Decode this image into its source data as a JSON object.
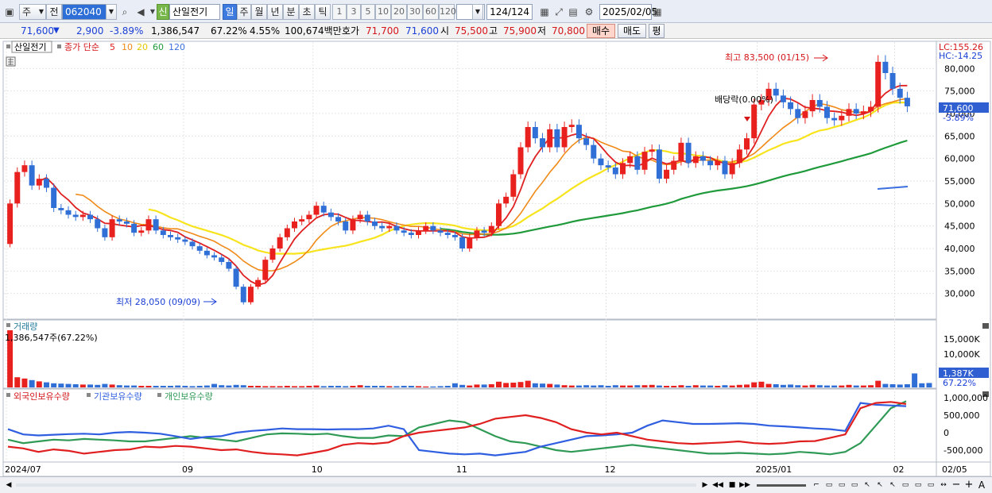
{
  "toolbar": {
    "type_label": "주",
    "prev_label": "전",
    "code": "062040",
    "badge": "신",
    "name": "산일전기",
    "period_tabs": [
      "일",
      "주",
      "월",
      "년",
      "분",
      "초",
      "틱"
    ],
    "active_tab": "일",
    "intervals": [
      "1",
      "3",
      "5",
      "10",
      "20",
      "30",
      "60",
      "120"
    ],
    "count": "124",
    "count_total": "/124",
    "date": "2025/02/05"
  },
  "quote": {
    "price": "71,600",
    "down_arrow": "▼",
    "change": "2,900",
    "change_pct": "-3.89%",
    "volume": "1,386,547",
    "volume_ratio": "67.22%",
    "turnover": "4.55%",
    "amount": "100,674백만",
    "bid_label": "호가",
    "ask": "71,700",
    "bid": "71,600",
    "open_label": "시",
    "open": "75,500",
    "high_label": "고",
    "high": "75,900",
    "low_label": "저",
    "low": "70,800",
    "buy_label": "매수",
    "sell_label": "매도",
    "eval_label": "평"
  },
  "chart": {
    "ticker_label": "산일전기",
    "ma_label": "종가 단순",
    "ma_periods": [
      "5",
      "10",
      "20",
      "60",
      "120"
    ],
    "lc": "LC:155.26",
    "hc": "HC:-14.25",
    "high_note": "최고 83,500 (01/15)",
    "low_note": "최저 28,050 (09/09)",
    "dividend_note": "배당락(0.00%)",
    "price_ticks": [
      "80,000",
      "75,000",
      "70,000",
      "65,000",
      "60,000",
      "55,000",
      "50,000",
      "45,000",
      "40,000",
      "35,000",
      "30,000"
    ],
    "price_tag": "71,600",
    "pct_tag": "-3.89%",
    "volume_title": "거래량",
    "volume_note": "1,386,547주(67.22%)",
    "volume_ticks": [
      "15,000K",
      "10,000K"
    ],
    "volume_tag": "1,387K",
    "volume_pct": "67.22%",
    "holdings_legend": [
      "외국인보유수량",
      "기관보유수량",
      "개인보유수량"
    ],
    "holdings_ticks": [
      "1,000,000",
      "500,000",
      "0",
      "-500,000"
    ],
    "x_labels": [
      "2024/07",
      "09",
      "10",
      "11",
      "12",
      "2025/01",
      "02",
      "02/05"
    ]
  },
  "colors": {
    "up": "#e8201e",
    "down": "#2f6fd6",
    "ma5": "#e02020",
    "ma10": "#f08a18",
    "ma20": "#f7e41c",
    "ma60": "#1f9a3a",
    "ma120": "#3b6fe0",
    "foreign": "#e02020",
    "institution": "#2f5fe0",
    "individual": "#2f9a55"
  },
  "chart_data": {
    "type": "candlestick",
    "x_range": [
      "2024/07",
      "2025/02/05"
    ],
    "ylim": [
      25000,
      85000
    ],
    "closes": [
      50000,
      57000,
      58500,
      54000,
      55500,
      53500,
      49000,
      48500,
      47500,
      47000,
      47500,
      46500,
      44500,
      42500,
      46500,
      46000,
      45500,
      43500,
      44000,
      46500,
      44000,
      43000,
      42500,
      42000,
      41500,
      40500,
      39500,
      38500,
      38000,
      37000,
      35500,
      31500,
      28050,
      31500,
      33000,
      37500,
      40000,
      42500,
      44500,
      46000,
      46500,
      47500,
      49500,
      48000,
      47000,
      46000,
      44000,
      46500,
      47500,
      46000,
      45000,
      44500,
      45000,
      44000,
      43500,
      43000,
      44000,
      45000,
      44000,
      43500,
      43000,
      42500,
      40000,
      42500,
      44000,
      43500,
      45000,
      50000,
      51500,
      56500,
      62500,
      67000,
      64500,
      62500,
      66500,
      62500,
      67000,
      67500,
      64500,
      63000,
      60000,
      58500,
      58000,
      56500,
      59000,
      60500,
      57500,
      61500,
      62000,
      55500,
      57500,
      59500,
      63500,
      59000,
      60500,
      59500,
      58500,
      59500,
      56500,
      59000,
      62000,
      64500,
      72000,
      73000,
      75500,
      74000,
      72500,
      71000,
      69000,
      70500,
      73000,
      71500,
      69000,
      68500,
      69500,
      71000,
      70000,
      70500,
      71500,
      81500,
      79000,
      75500,
      73500,
      71600
    ],
    "highs_lows": {
      "high": 83500,
      "high_date": "01/15",
      "low": 28050,
      "low_date": "09/09"
    },
    "volume": [
      18000,
      3200,
      2800,
      2300,
      1900,
      1600,
      1300,
      1200,
      1100,
      1000,
      900,
      900,
      800,
      1100,
      900,
      700,
      600,
      600,
      500,
      500,
      500,
      500,
      500,
      600,
      500,
      400,
      500,
      600,
      1100,
      700,
      600,
      800,
      700,
      500,
      500,
      400,
      400,
      400,
      500,
      400,
      400,
      500,
      600,
      400,
      500,
      500,
      400,
      500,
      700,
      500,
      500,
      500,
      400,
      400,
      500,
      500,
      400,
      300,
      300,
      400,
      500,
      1300,
      800,
      600,
      900,
      900,
      1000,
      1800,
      1400,
      1500,
      1700,
      2100,
      1300,
      1200,
      1100,
      900,
      700,
      600,
      600,
      700,
      600,
      700,
      500,
      700,
      600,
      600,
      700,
      700,
      800,
      600,
      500,
      500,
      700,
      500,
      700,
      600,
      600,
      500,
      700,
      600,
      800,
      900,
      1600,
      1800,
      1100,
      1000,
      800,
      900,
      700,
      600,
      800,
      700,
      600,
      600,
      600,
      800,
      600,
      600,
      700,
      2100,
      1100,
      1000,
      900,
      1000,
      4400,
      1300,
      1387
    ],
    "holdings": {
      "foreign": [
        -400000,
        -450000,
        -550000,
        -480000,
        -520000,
        -600000,
        -550000,
        -500000,
        -480000,
        -400000,
        -420000,
        -380000,
        -400000,
        -450000,
        -500000,
        -480000,
        -550000,
        -600000,
        -620000,
        -650000,
        -580000,
        -500000,
        -350000,
        -300000,
        -320000,
        -280000,
        -100000,
        0,
        50000,
        100000,
        150000,
        250000,
        400000,
        450000,
        500000,
        420000,
        300000,
        100000,
        0,
        -50000,
        0,
        -100000,
        -200000,
        -250000,
        -300000,
        -320000,
        -300000,
        -280000,
        -250000,
        -300000,
        -320000,
        -300000,
        -250000,
        -240000,
        -150000,
        -50000,
        700000,
        850000,
        880000,
        820000
      ],
      "institution": [
        100000,
        -50000,
        -80000,
        -60000,
        -40000,
        -30000,
        -50000,
        0,
        20000,
        0,
        -30000,
        -100000,
        -180000,
        -120000,
        -100000,
        0,
        50000,
        80000,
        120000,
        100000,
        100000,
        90000,
        100000,
        100000,
        120000,
        200000,
        100000,
        -500000,
        -550000,
        -600000,
        -620000,
        -600000,
        -650000,
        -600000,
        -550000,
        -400000,
        -300000,
        -200000,
        -100000,
        -80000,
        -50000,
        0,
        200000,
        350000,
        300000,
        250000,
        250000,
        260000,
        270000,
        250000,
        200000,
        180000,
        150000,
        120000,
        100000,
        50000,
        850000,
        800000,
        780000,
        760000
      ],
      "individual": [
        -200000,
        -300000,
        -250000,
        -200000,
        -220000,
        -180000,
        -200000,
        -220000,
        -250000,
        -250000,
        -200000,
        -150000,
        -100000,
        -150000,
        -200000,
        -250000,
        -150000,
        -50000,
        -20000,
        -30000,
        -50000,
        -30000,
        -100000,
        -150000,
        -150000,
        -80000,
        -100000,
        150000,
        250000,
        350000,
        300000,
        100000,
        -100000,
        -250000,
        -300000,
        -400000,
        -500000,
        -550000,
        -500000,
        -450000,
        -400000,
        -350000,
        -400000,
        -450000,
        -500000,
        -550000,
        -600000,
        -600000,
        -580000,
        -600000,
        -620000,
        -600000,
        -550000,
        -580000,
        -620000,
        -550000,
        -300000,
        200000,
        700000,
        900000
      ]
    }
  }
}
